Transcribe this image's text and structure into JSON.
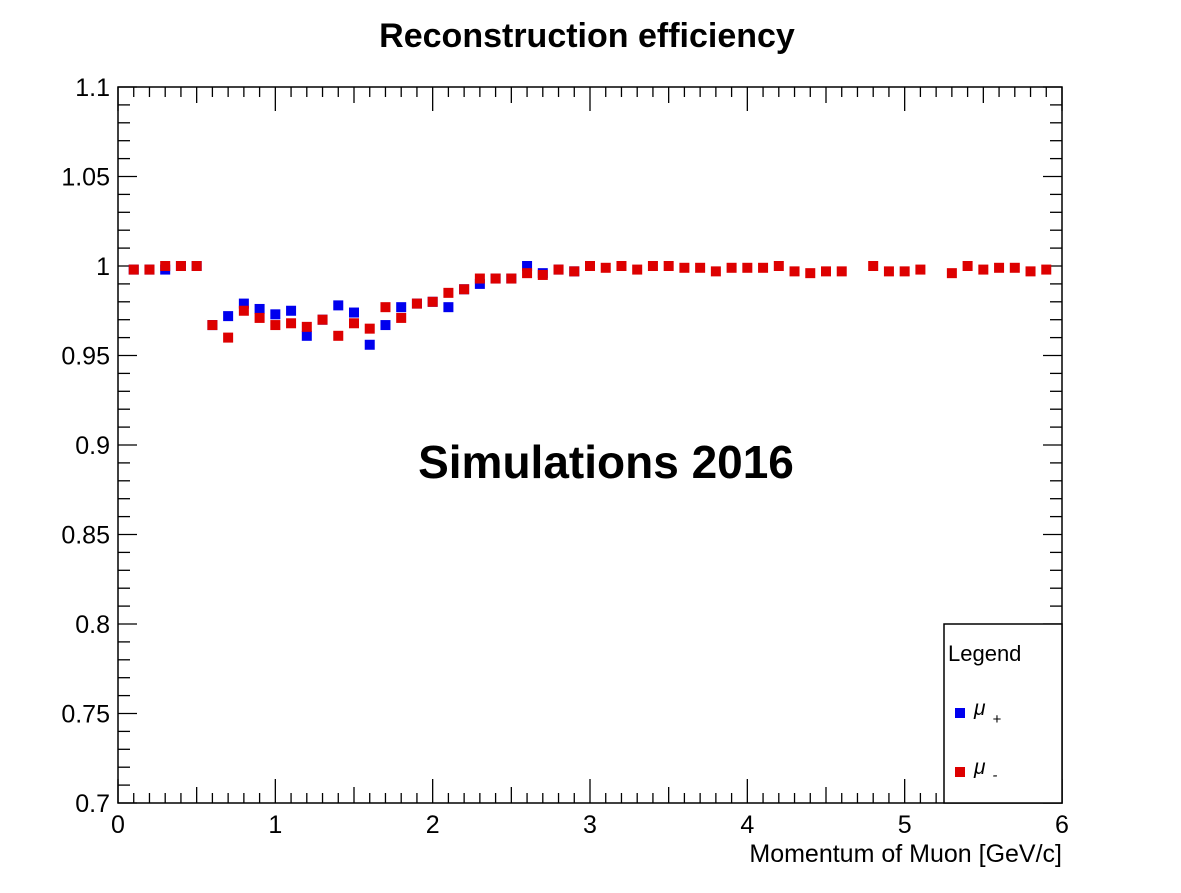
{
  "chart_data": {
    "type": "scatter",
    "title": "Reconstruction efficiency",
    "xlabel": "Momentum of Muon [GeV/c]",
    "ylabel": "",
    "xlim": [
      0,
      6
    ],
    "ylim": [
      0.7,
      1.1
    ],
    "x_ticks": [
      "0",
      "1",
      "2",
      "3",
      "4",
      "5",
      "6"
    ],
    "y_ticks": [
      "0.7",
      "0.75",
      "0.8",
      "0.85",
      "0.9",
      "0.95",
      "1",
      "1.05",
      "1.1"
    ],
    "annotation": "Simulations 2016",
    "legend": {
      "title": "Legend",
      "placement": "bottom-right",
      "entries": [
        {
          "symbol": "μ",
          "subscript": "+",
          "color": "#0000ee"
        },
        {
          "symbol": "μ",
          "subscript": "-",
          "color": "#dd0000"
        }
      ]
    },
    "series": [
      {
        "color": "#0000ee",
        "points": [
          [
            0.1,
            0.998
          ],
          [
            0.2,
            0.998
          ],
          [
            0.3,
            0.998
          ],
          [
            0.4,
            1.0
          ],
          [
            0.5,
            1.0
          ],
          [
            0.6,
            0.967
          ],
          [
            0.7,
            0.972
          ],
          [
            0.8,
            0.979
          ],
          [
            0.9,
            0.976
          ],
          [
            1.0,
            0.973
          ],
          [
            1.1,
            0.975
          ],
          [
            1.2,
            0.961
          ],
          [
            1.3,
            0.97
          ],
          [
            1.4,
            0.978
          ],
          [
            1.5,
            0.974
          ],
          [
            1.6,
            0.956
          ],
          [
            1.7,
            0.967
          ],
          [
            1.8,
            0.977
          ],
          [
            1.9,
            0.979
          ],
          [
            2.0,
            0.98
          ],
          [
            2.1,
            0.977
          ],
          [
            2.2,
            0.987
          ],
          [
            2.3,
            0.99
          ],
          [
            2.4,
            0.993
          ],
          [
            2.5,
            0.993
          ],
          [
            2.6,
            1.0
          ],
          [
            2.7,
            0.996
          ],
          [
            2.8,
            0.998
          ],
          [
            2.9,
            0.997
          ],
          [
            3.0,
            1.0
          ]
        ]
      },
      {
        "color": "#dd0000",
        "points": [
          [
            0.1,
            0.998
          ],
          [
            0.2,
            0.998
          ],
          [
            0.3,
            1.0
          ],
          [
            0.4,
            1.0
          ],
          [
            0.5,
            1.0
          ],
          [
            0.6,
            0.967
          ],
          [
            0.7,
            0.96
          ],
          [
            0.8,
            0.975
          ],
          [
            0.9,
            0.971
          ],
          [
            1.0,
            0.967
          ],
          [
            1.1,
            0.968
          ],
          [
            1.2,
            0.966
          ],
          [
            1.3,
            0.97
          ],
          [
            1.4,
            0.961
          ],
          [
            1.5,
            0.968
          ],
          [
            1.6,
            0.965
          ],
          [
            1.7,
            0.977
          ],
          [
            1.8,
            0.971
          ],
          [
            1.9,
            0.979
          ],
          [
            2.0,
            0.98
          ],
          [
            2.1,
            0.985
          ],
          [
            2.2,
            0.987
          ],
          [
            2.3,
            0.993
          ],
          [
            2.4,
            0.993
          ],
          [
            2.5,
            0.993
          ],
          [
            2.6,
            0.996
          ],
          [
            2.7,
            0.995
          ],
          [
            2.8,
            0.998
          ],
          [
            2.9,
            0.997
          ],
          [
            3.0,
            1.0
          ],
          [
            3.1,
            0.999
          ],
          [
            3.2,
            1.0
          ],
          [
            3.3,
            0.998
          ],
          [
            3.4,
            1.0
          ],
          [
            3.5,
            1.0
          ],
          [
            3.6,
            0.999
          ],
          [
            3.7,
            0.999
          ],
          [
            3.8,
            0.997
          ],
          [
            3.9,
            0.999
          ],
          [
            4.0,
            0.999
          ],
          [
            4.1,
            0.999
          ],
          [
            4.2,
            1.0
          ],
          [
            4.3,
            0.997
          ],
          [
            4.4,
            0.996
          ],
          [
            4.5,
            0.997
          ],
          [
            4.6,
            0.997
          ],
          [
            4.8,
            1.0
          ],
          [
            4.9,
            0.997
          ],
          [
            5.0,
            0.997
          ],
          [
            5.1,
            0.998
          ],
          [
            5.3,
            0.996
          ],
          [
            5.4,
            1.0
          ],
          [
            5.5,
            0.998
          ],
          [
            5.6,
            0.999
          ],
          [
            5.7,
            0.999
          ],
          [
            5.8,
            0.997
          ],
          [
            5.9,
            0.998
          ]
        ]
      }
    ]
  }
}
